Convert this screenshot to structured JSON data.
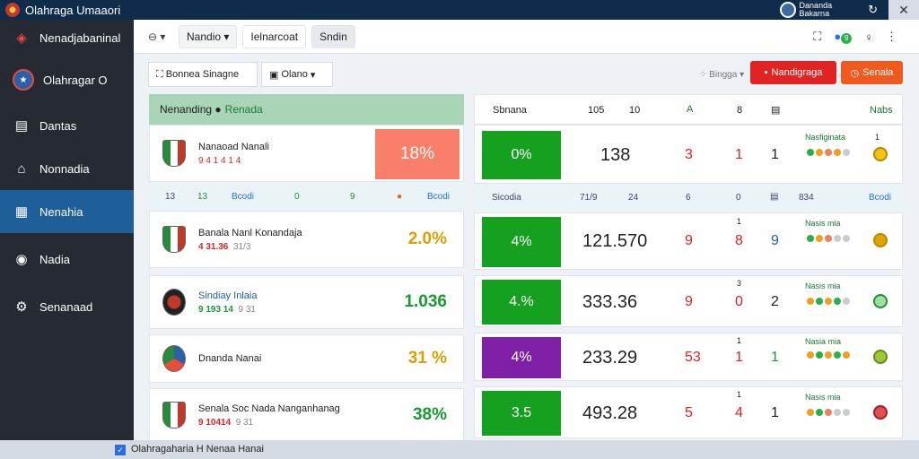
{
  "titlebar": {
    "title": "Olahraga Umaaori",
    "user_line1": "Dananda",
    "user_line2": "Bakarna",
    "refresh_icon": "refresh-icon",
    "close_icon": "close-icon"
  },
  "sidebar": {
    "items": [
      {
        "label": "Nenadjabaninal",
        "icon": "brand-icon"
      },
      {
        "label": "Olahragar O",
        "icon": "team-badge-icon"
      },
      {
        "label": "Dantas",
        "icon": "list-icon"
      },
      {
        "label": "Nonnadia",
        "icon": "home-icon"
      },
      {
        "label": "Nenahia",
        "icon": "building-icon"
      },
      {
        "label": "Nadia",
        "icon": "location-icon"
      },
      {
        "label": "Senanaad",
        "icon": "settings-icon"
      }
    ]
  },
  "topbar": {
    "tabs": [
      "Nandio",
      "Ielnarcoat",
      "Sndin"
    ],
    "tools": [
      "⛶",
      "●",
      "♀"
    ],
    "notif": "9"
  },
  "filters": {
    "first": "Bonnea Sinagne",
    "second": "Olano",
    "sort": "Bingga",
    "red_button": "Nandigraga",
    "orange_button": "Senala"
  },
  "left_panel": {
    "header": "Nenanding",
    "header_accent": "Renada",
    "cards": [
      {
        "name": "Nanaoad Nanali",
        "sub": "9 4 1 4 1 4",
        "pct": "18%"
      },
      {
        "name": "Banala Nanl Konandaja",
        "sub": "4 31.36",
        "sub2": "31/3",
        "pct": "2.0%"
      },
      {
        "name": "Sindiay Inlaia",
        "sub": "9 193 14",
        "sub2": "9 31",
        "pct": "1.036"
      },
      {
        "name": "Dnanda Nanai",
        "sub": "",
        "sub2": "",
        "pct": "31 %"
      },
      {
        "name": "Senala Soc Nada Nanganhanag",
        "sub": "9 10414",
        "sub2": "9 31",
        "pct": "38%"
      }
    ],
    "subheader": [
      "13",
      "13",
      "Bcodi",
      "0",
      "9",
      "Bcodi"
    ]
  },
  "right_panel": {
    "header": [
      "Sbnana",
      "105",
      "10",
      "A",
      "8",
      "Nabs"
    ],
    "rows": [
      {
        "chip": "0%",
        "chip_color": "#15a01f",
        "value": "138",
        "a": "3",
        "b": "1",
        "c": "1",
        "meta": "Nasfiginata",
        "num": "1"
      },
      {
        "chip": "4%",
        "chip_color": "#15a01f",
        "value": "121.570",
        "a": "9",
        "b": "8",
        "c": "9",
        "meta": "Nasis mia",
        "num": "1"
      },
      {
        "chip": "4.%",
        "chip_color": "#15a01f",
        "value": "333.36",
        "a": "9",
        "b": "0",
        "c": "2",
        "meta": "Nasis mia",
        "num": "3"
      },
      {
        "chip": "4%",
        "chip_color": "#7e1fa6",
        "value": "233.29",
        "a": "53",
        "b": "1",
        "c": "1",
        "meta": "Nasia mia",
        "num": "1"
      },
      {
        "chip": "3.5",
        "chip_color": "#15a01f",
        "value": "493.28",
        "a": "5",
        "b": "4",
        "c": "1",
        "meta": "Nasis mia",
        "num": "1"
      }
    ],
    "subheader": [
      "Sicodia",
      "71/9",
      "24",
      "6",
      "0",
      "834",
      "Bcodi"
    ]
  },
  "bottombar": {
    "label": "Olahragaharia H Nenaa Hanai"
  }
}
